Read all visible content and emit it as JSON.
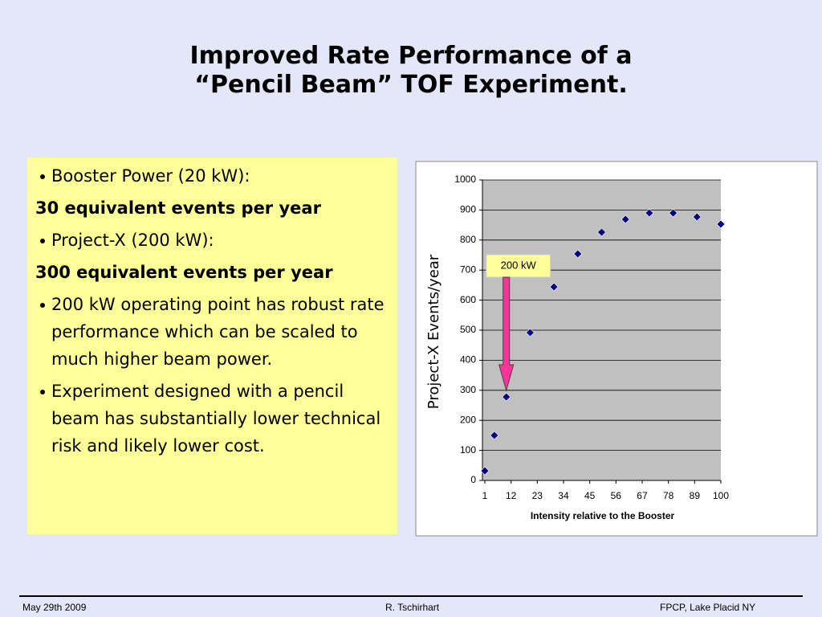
{
  "title": [
    "Improved Rate Performance of a",
    "“Pencil Beam” TOF Experiment."
  ],
  "items": [
    "Booster Power (20 kW):",
    "30  equivalent events per year",
    "Project-X (200 kW):",
    "300 equivalent events per year",
    "200 kW operating point has robust rate performance which can be scaled to much higher beam power.",
    "Experiment designed with a pencil beam has substantially lower technical risk and likely lower cost."
  ],
  "footer": {
    "left": "May 29th  2009",
    "center": "R. Tschirhart",
    "right": "FPCP, Lake Placid NY"
  },
  "chart_data": {
    "type": "scatter",
    "x": [
      1,
      5,
      10,
      20,
      30,
      40,
      50,
      60,
      70,
      80,
      90,
      100
    ],
    "series": [
      {
        "name": "Project-X Events/year",
        "color": "#000080",
        "values": [
          32,
          150,
          278,
          492,
          644,
          754,
          826,
          869,
          890,
          890,
          877,
          853
        ]
      }
    ],
    "xlim": [
      0,
      100
    ],
    "xticks": [
      1,
      12,
      23,
      34,
      45,
      56,
      67,
      78,
      89,
      100
    ],
    "ylim": [
      0,
      1000
    ],
    "yticks": [
      0,
      100,
      200,
      300,
      400,
      500,
      600,
      700,
      800,
      900,
      1000
    ],
    "grid": true,
    "xlabel": "Intensity relative to the Booster",
    "ylabel": "Project-X Events/year",
    "annotations": [
      {
        "text": "200 kW",
        "x": 10
      }
    ]
  }
}
